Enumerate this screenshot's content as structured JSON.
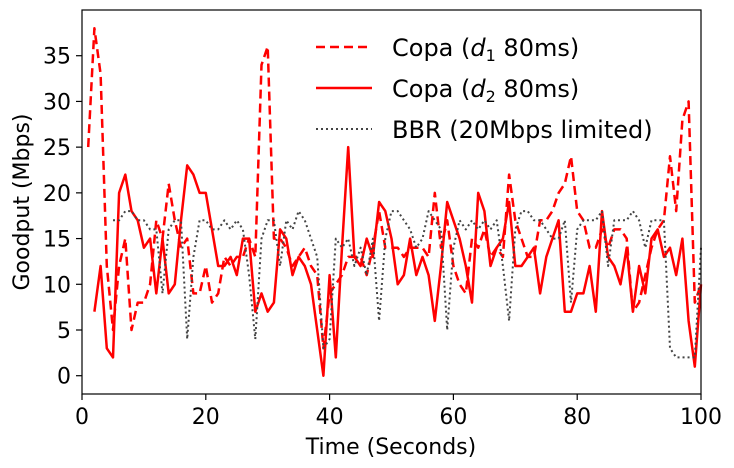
{
  "chart_data": {
    "type": "line",
    "xlabel": "Time (Seconds)",
    "ylabel": "Goodput (Mbps)",
    "xlim": [
      0,
      100
    ],
    "ylim": [
      -2,
      40
    ],
    "x_ticks": [
      "0",
      "20",
      "40",
      "60",
      "80",
      "100"
    ],
    "y_ticks": [
      "0",
      "5",
      "10",
      "15",
      "20",
      "25",
      "30",
      "35"
    ],
    "grid": false,
    "legend_position": "top-right",
    "series": [
      {
        "name_parts": [
          "Copa (",
          "d",
          "1",
          " 80ms)"
        ],
        "color": "#ff0000",
        "style": "dashed",
        "x": [
          1,
          2,
          3,
          4,
          5,
          6,
          7,
          8,
          9,
          10,
          11,
          12,
          13,
          14,
          15,
          16,
          17,
          18,
          19,
          20,
          21,
          22,
          23,
          24,
          25,
          26,
          27,
          28,
          29,
          30,
          31,
          32,
          33,
          34,
          35,
          36,
          37,
          38,
          39,
          40,
          41,
          42,
          43,
          44,
          45,
          46,
          47,
          48,
          49,
          50,
          51,
          52,
          53,
          54,
          55,
          56,
          57,
          58,
          59,
          60,
          61,
          62,
          63,
          64,
          65,
          66,
          67,
          68,
          69,
          70,
          71,
          72,
          73,
          74,
          75,
          76,
          77,
          78,
          79,
          80,
          81,
          82,
          83,
          84,
          85,
          86,
          87,
          88,
          89,
          90,
          91,
          92,
          93,
          94,
          95,
          96,
          97,
          98,
          99,
          100
        ],
        "values": [
          25,
          38,
          33,
          12,
          5,
          12,
          15,
          5,
          8,
          8,
          10,
          17,
          15,
          21,
          17,
          14,
          15,
          9,
          9,
          12,
          8,
          9,
          13,
          12,
          13,
          13,
          15,
          13,
          34,
          36,
          15,
          15,
          14,
          12,
          13,
          14,
          12,
          11,
          3,
          9,
          10,
          11,
          13,
          13,
          13,
          11,
          14,
          18,
          14,
          14,
          14,
          13,
          14,
          14,
          14,
          13,
          20,
          14,
          17,
          12,
          10,
          9,
          15,
          14,
          16,
          13,
          14,
          13,
          22,
          17,
          15,
          13,
          13,
          17,
          17,
          18,
          20,
          21,
          24,
          18,
          17,
          14,
          14,
          16,
          14,
          16,
          16,
          15,
          7,
          8,
          11,
          14,
          16,
          17,
          24,
          18,
          28,
          30,
          8,
          10
        ]
      },
      {
        "name_parts": [
          "Copa (",
          "d",
          "2",
          " 80ms)"
        ],
        "color": "#ff0000",
        "style": "solid",
        "x": [
          1,
          2,
          3,
          4,
          5,
          6,
          7,
          8,
          9,
          10,
          11,
          12,
          13,
          14,
          15,
          16,
          17,
          18,
          19,
          20,
          21,
          22,
          23,
          24,
          25,
          26,
          27,
          28,
          29,
          30,
          31,
          32,
          33,
          34,
          35,
          36,
          37,
          38,
          39,
          40,
          41,
          42,
          43,
          44,
          45,
          46,
          47,
          48,
          49,
          50,
          51,
          52,
          53,
          54,
          55,
          56,
          57,
          58,
          59,
          60,
          61,
          62,
          63,
          64,
          65,
          66,
          67,
          68,
          69,
          70,
          71,
          72,
          73,
          74,
          75,
          76,
          77,
          78,
          79,
          80,
          81,
          82,
          83,
          84,
          85,
          86,
          87,
          88,
          89,
          90,
          91,
          92,
          93,
          94,
          95,
          96,
          97,
          98,
          99,
          100
        ],
        "values": [
          null,
          7,
          12,
          3,
          2,
          20,
          22,
          18,
          17,
          14,
          15,
          9,
          15,
          9,
          10,
          17,
          23,
          22,
          20,
          20,
          16,
          12,
          12,
          13,
          11,
          15,
          15,
          7,
          9,
          7,
          8,
          16,
          15,
          11,
          13,
          12,
          10,
          5,
          0,
          11,
          2,
          14,
          25,
          13,
          12,
          15,
          13,
          19,
          18,
          15,
          10,
          11,
          15,
          11,
          13,
          11,
          6,
          12,
          19,
          17,
          15,
          12,
          8,
          20,
          18,
          12,
          14,
          15,
          19,
          12,
          12,
          13,
          14,
          9,
          13,
          15,
          17,
          7,
          7,
          9,
          9,
          12,
          7,
          18,
          13,
          12,
          10,
          14,
          7,
          12,
          9,
          15,
          16,
          13,
          14,
          11,
          15,
          6,
          1,
          10
        ]
      },
      {
        "name": "BBR (20Mbps limited)",
        "color": "#444444",
        "style": "dotted",
        "x": [
          1,
          2,
          3,
          4,
          5,
          6,
          7,
          8,
          9,
          10,
          11,
          12,
          13,
          14,
          15,
          16,
          17,
          18,
          19,
          20,
          21,
          22,
          23,
          24,
          25,
          26,
          27,
          28,
          29,
          30,
          31,
          32,
          33,
          34,
          35,
          36,
          37,
          38,
          39,
          40,
          41,
          42,
          43,
          44,
          45,
          46,
          47,
          48,
          49,
          50,
          51,
          52,
          53,
          54,
          55,
          56,
          57,
          58,
          59,
          60,
          61,
          62,
          63,
          64,
          65,
          66,
          67,
          68,
          69,
          70,
          71,
          72,
          73,
          74,
          75,
          76,
          77,
          78,
          79,
          80,
          81,
          82,
          83,
          84,
          85,
          86,
          87,
          88,
          89,
          90,
          91,
          92,
          93,
          94,
          95,
          96,
          97,
          98,
          99,
          100
        ],
        "values": [
          null,
          null,
          null,
          null,
          17,
          17,
          18,
          18,
          17,
          17,
          16,
          16,
          9,
          16,
          17,
          17,
          4,
          13,
          17,
          17,
          16,
          16,
          17,
          16,
          17,
          16,
          11,
          4,
          15,
          17,
          17,
          12,
          17,
          16,
          18,
          17,
          15,
          13,
          3,
          4,
          15,
          14,
          15,
          12,
          14,
          11,
          15,
          6,
          15,
          18,
          18,
          17,
          16,
          14,
          15,
          18,
          17,
          16,
          5,
          14,
          17,
          16,
          17,
          16,
          17,
          16,
          17,
          12,
          6,
          16,
          18,
          18,
          17,
          17,
          16,
          15,
          15,
          17,
          8,
          16,
          17,
          17,
          17,
          18,
          12,
          17,
          17,
          17,
          18,
          17,
          14,
          17,
          17,
          17,
          3,
          2,
          2,
          2,
          2,
          14
        ]
      }
    ]
  }
}
